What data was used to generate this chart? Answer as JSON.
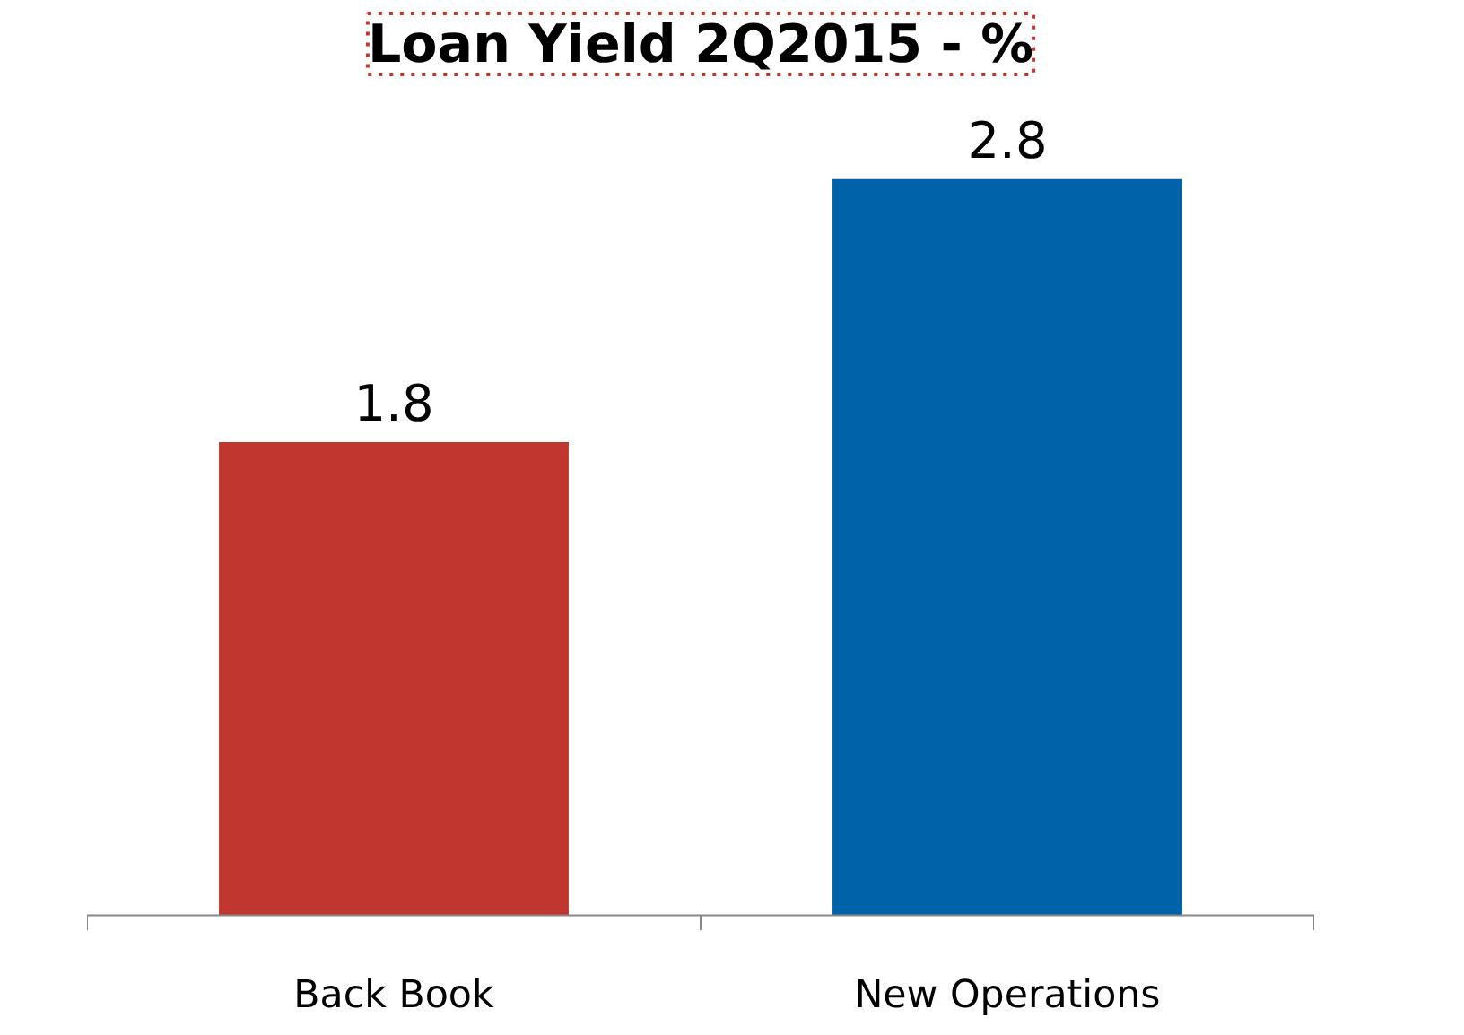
{
  "chart_data": {
    "type": "bar",
    "title": "Loan Yield 2Q2015 - %",
    "categories": [
      "Back Book",
      "New Operations"
    ],
    "values": [
      1.8,
      2.8
    ],
    "colors": [
      "#c1372f",
      "#0062a8"
    ],
    "data_labels": true,
    "grid": false
  }
}
